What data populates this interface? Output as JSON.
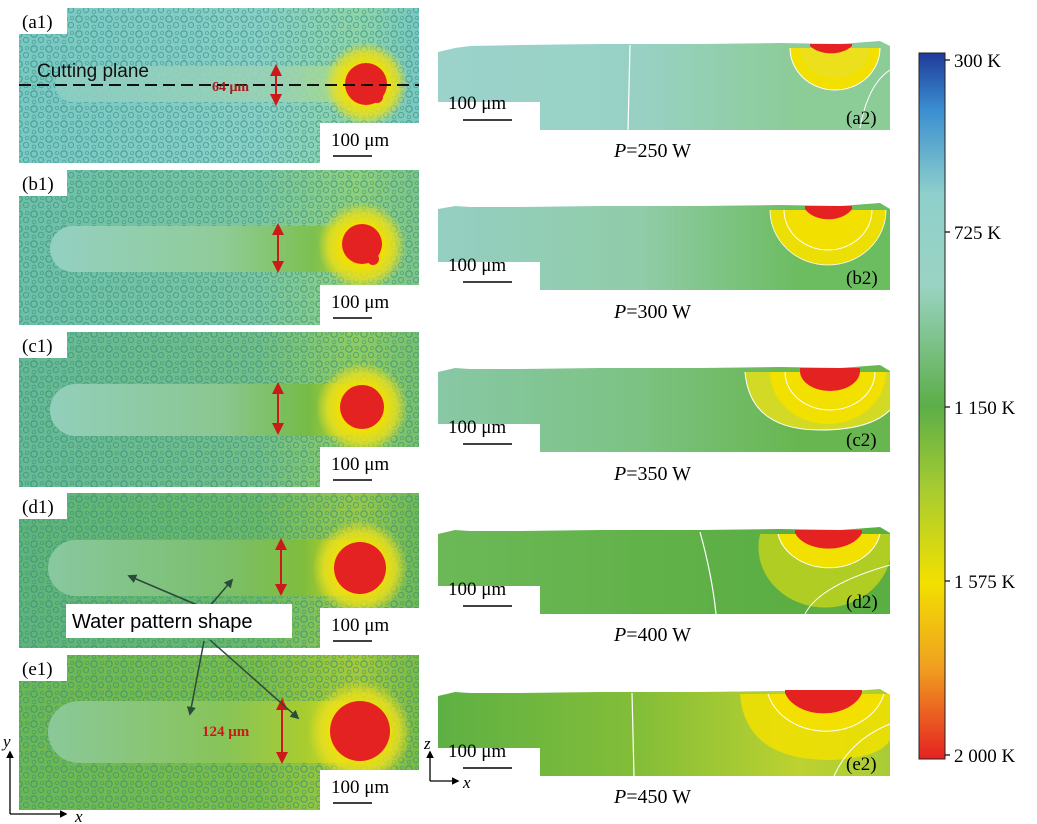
{
  "top_views": [
    {
      "label": "(a1)",
      "scale": "100 μm"
    },
    {
      "label": "(b1)",
      "scale": "100 μm"
    },
    {
      "label": "(c1)",
      "scale": "100 μm"
    },
    {
      "label": "(d1)",
      "scale": "100 μm"
    },
    {
      "label": "(e1)",
      "scale": "100 μm"
    }
  ],
  "cross_sections": [
    {
      "label": "(a2)",
      "scale": "100 μm",
      "power_symbol": "P",
      "power_value": "=250 W"
    },
    {
      "label": "(b2)",
      "scale": "100 μm",
      "power_symbol": "P",
      "power_value": "=300 W"
    },
    {
      "label": "(c2)",
      "scale": "100 μm",
      "power_symbol": "P",
      "power_value": "=350 W"
    },
    {
      "label": "(d2)",
      "scale": "100 μm",
      "power_symbol": "P",
      "power_value": "=400 W"
    },
    {
      "label": "(e2)",
      "scale": "100 μm",
      "power_symbol": "P",
      "power_value": "=450 W"
    }
  ],
  "annotations": {
    "cutting_plane": "Cutting plane",
    "width_a1": "64 μm",
    "width_e1": "124 μm",
    "water_pattern": "Water pattern shape"
  },
  "axes": {
    "top_y": "y",
    "top_x": "x",
    "side_z": "z",
    "side_x": "x"
  },
  "colorbar": {
    "ticks": [
      "300 K",
      "725 K",
      "1 150 K",
      "1 575 K",
      "2 000 K"
    ],
    "colors": {
      "cold": "#1f3a9a",
      "cool": "#8fd0cc",
      "mid": "#5cae48",
      "warm": "#f2e000",
      "hot": "#e52222"
    }
  },
  "colors": {
    "arrow": "#cc1a1a",
    "annotation_arrow": "#2a4a3a",
    "contour": "#ffffff"
  }
}
